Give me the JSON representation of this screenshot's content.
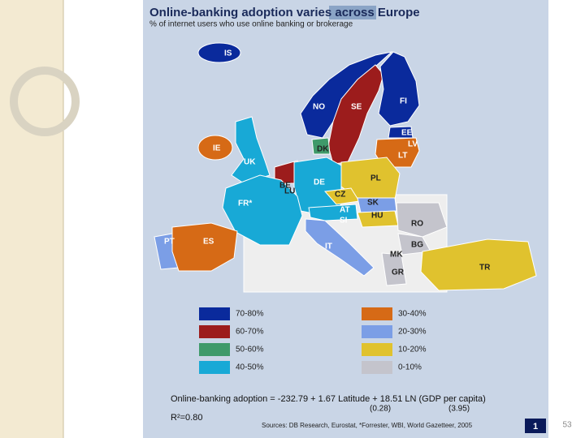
{
  "header": {
    "title": "Online-banking adoption varies across Europe",
    "subtitle": "% of internet users who use online banking or brokerage"
  },
  "map": {
    "labels": [
      "IS",
      "NO",
      "SE",
      "FI",
      "EE",
      "LV",
      "LT",
      "DK",
      "IE",
      "UK",
      "BE",
      "LU",
      "DE",
      "PL",
      "CZ",
      "SK",
      "AT",
      "SI",
      "HU",
      "RO",
      "FR*",
      "PT",
      "ES",
      "IT",
      "BG",
      "MK",
      "GR",
      "TR"
    ]
  },
  "legend": {
    "items": [
      {
        "label": "70-80%",
        "color": "#0a2a9c"
      },
      {
        "label": "60-70%",
        "color": "#9c1c1c"
      },
      {
        "label": "50-60%",
        "color": "#3f9a6a"
      },
      {
        "label": "40-50%",
        "color": "#18a9d6"
      },
      {
        "label": "30-40%",
        "color": "#d66a16"
      },
      {
        "label": "20-30%",
        "color": "#7b9ee6"
      },
      {
        "label": "10-20%",
        "color": "#e0c22e"
      },
      {
        "label": "0-10%",
        "color": "#c4c4cc"
      }
    ]
  },
  "equation": {
    "text": "Online-banking adoption = -232.79 + 1.67 Latitude + 18.51 LN (GDP per capita)",
    "se_latitude": "(0.28)",
    "se_gdp": "(3.95)",
    "r_squared": "R²=0.80"
  },
  "sources": "Sources: DB Research, Eurostat, *Forrester, WBI, World Gazetteer, 2005",
  "badge": "1",
  "slide_number": "53"
}
